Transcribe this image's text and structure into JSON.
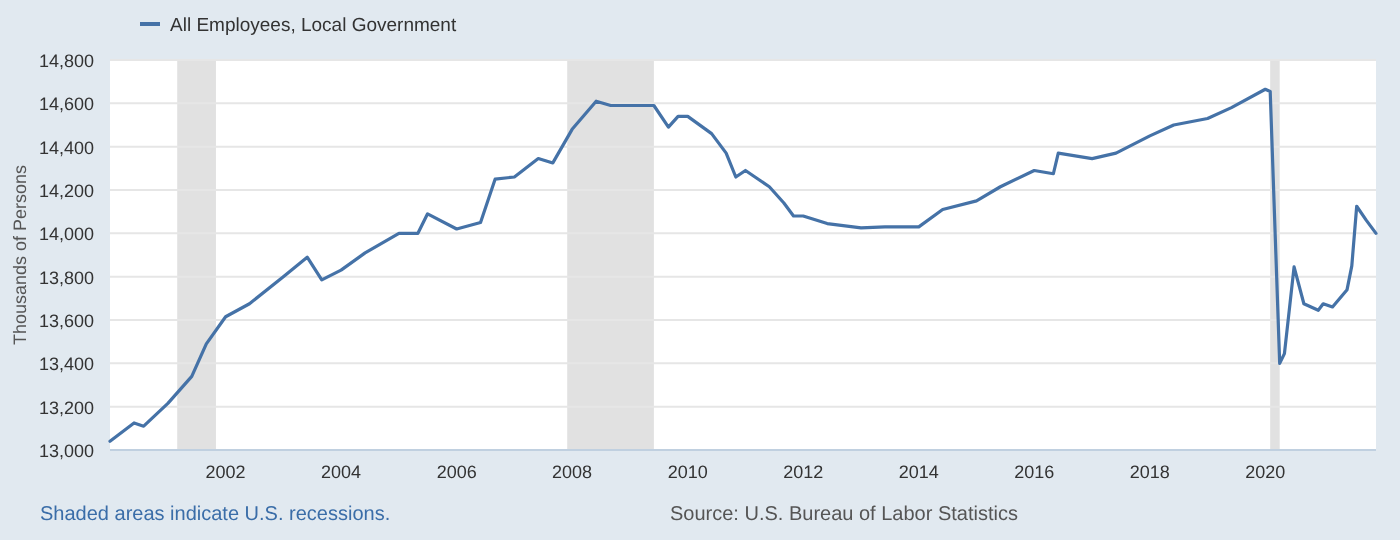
{
  "chart_data": {
    "type": "line",
    "ylabel": "Thousands of Persons",
    "legend": "top left",
    "x": [
      "2000-01",
      "2000-06",
      "2000-08",
      "2001-01",
      "2001-06",
      "2001-09",
      "2002-01",
      "2002-06",
      "2003-01",
      "2003-06",
      "2003-09",
      "2004-01",
      "2004-06",
      "2005-01",
      "2005-05",
      "2005-07",
      "2006-01",
      "2006-06",
      "2006-09",
      "2007-01",
      "2007-06",
      "2007-09",
      "2008-01",
      "2008-06",
      "2008-09",
      "2009-06",
      "2009-09",
      "2009-11",
      "2010-01",
      "2010-06",
      "2010-09",
      "2010-11",
      "2011-01",
      "2011-06",
      "2011-09",
      "2011-11",
      "2012-01",
      "2012-06",
      "2013-01",
      "2013-06",
      "2014-01",
      "2014-06",
      "2015-01",
      "2015-06",
      "2016-01",
      "2016-05",
      "2016-06",
      "2017-01",
      "2017-06",
      "2018-01",
      "2018-06",
      "2019-01",
      "2019-06",
      "2020-01",
      "2020-02",
      "2020-04",
      "2020-05",
      "2020-07",
      "2020-09",
      "2020-12",
      "2021-01",
      "2021-03",
      "2021-06",
      "2021-07",
      "2021-08",
      "2021-10",
      "2021-12"
    ],
    "series": [
      {
        "name": "All Employees, Local Government",
        "color": "#4572a7",
        "values": [
          13040,
          13125,
          13110,
          13215,
          13340,
          13490,
          13615,
          13675,
          13800,
          13890,
          13785,
          13830,
          13910,
          14000,
          14000,
          14090,
          14020,
          14050,
          14250,
          14260,
          14345,
          14325,
          14480,
          14610,
          14590,
          14590,
          14490,
          14540,
          14540,
          14460,
          14370,
          14260,
          14290,
          14215,
          14140,
          14080,
          14080,
          14045,
          14025,
          14030,
          14030,
          14110,
          14150,
          14215,
          14290,
          14275,
          14370,
          14345,
          14370,
          14450,
          14500,
          14530,
          14580,
          14665,
          14655,
          13400,
          13445,
          13845,
          13675,
          13645,
          13675,
          13660,
          13740,
          13850,
          14125,
          14060,
          14000
        ]
      }
    ],
    "xlim": [
      "2000-01",
      "2021-12"
    ],
    "xticks": [
      {
        "value": "2002",
        "label": "2002"
      },
      {
        "value": "2004",
        "label": "2004"
      },
      {
        "value": "2006",
        "label": "2006"
      },
      {
        "value": "2008",
        "label": "2008"
      },
      {
        "value": "2010",
        "label": "2010"
      },
      {
        "value": "2012",
        "label": "2012"
      },
      {
        "value": "2014",
        "label": "2014"
      },
      {
        "value": "2016",
        "label": "2016"
      },
      {
        "value": "2018",
        "label": "2018"
      },
      {
        "value": "2020",
        "label": "2020"
      }
    ],
    "ylim": [
      13000,
      14800
    ],
    "yticks": [
      {
        "value": 13000,
        "label": "13,000"
      },
      {
        "value": 13200,
        "label": "13,200"
      },
      {
        "value": 13400,
        "label": "13,400"
      },
      {
        "value": 13600,
        "label": "13,600"
      },
      {
        "value": 13800,
        "label": "13,800"
      },
      {
        "value": 14000,
        "label": "14,000"
      },
      {
        "value": 14200,
        "label": "14,200"
      },
      {
        "value": 14400,
        "label": "14,400"
      },
      {
        "value": 14600,
        "label": "14,600"
      },
      {
        "value": 14800,
        "label": "14,800"
      }
    ],
    "grid": "y",
    "bands": [
      {
        "axis": "x",
        "from": "2001-03",
        "to": "2001-11",
        "color": "#e1e1e1"
      },
      {
        "axis": "x",
        "from": "2007-12",
        "to": "2009-06",
        "color": "#e1e1e1"
      },
      {
        "axis": "x",
        "from": "2020-02",
        "to": "2020-04",
        "color": "#e1e1e1"
      }
    ],
    "annotations": [
      "Shaded areas indicate U.S. recessions.",
      "Source: U.S. Bureau of Labor Statistics"
    ]
  }
}
